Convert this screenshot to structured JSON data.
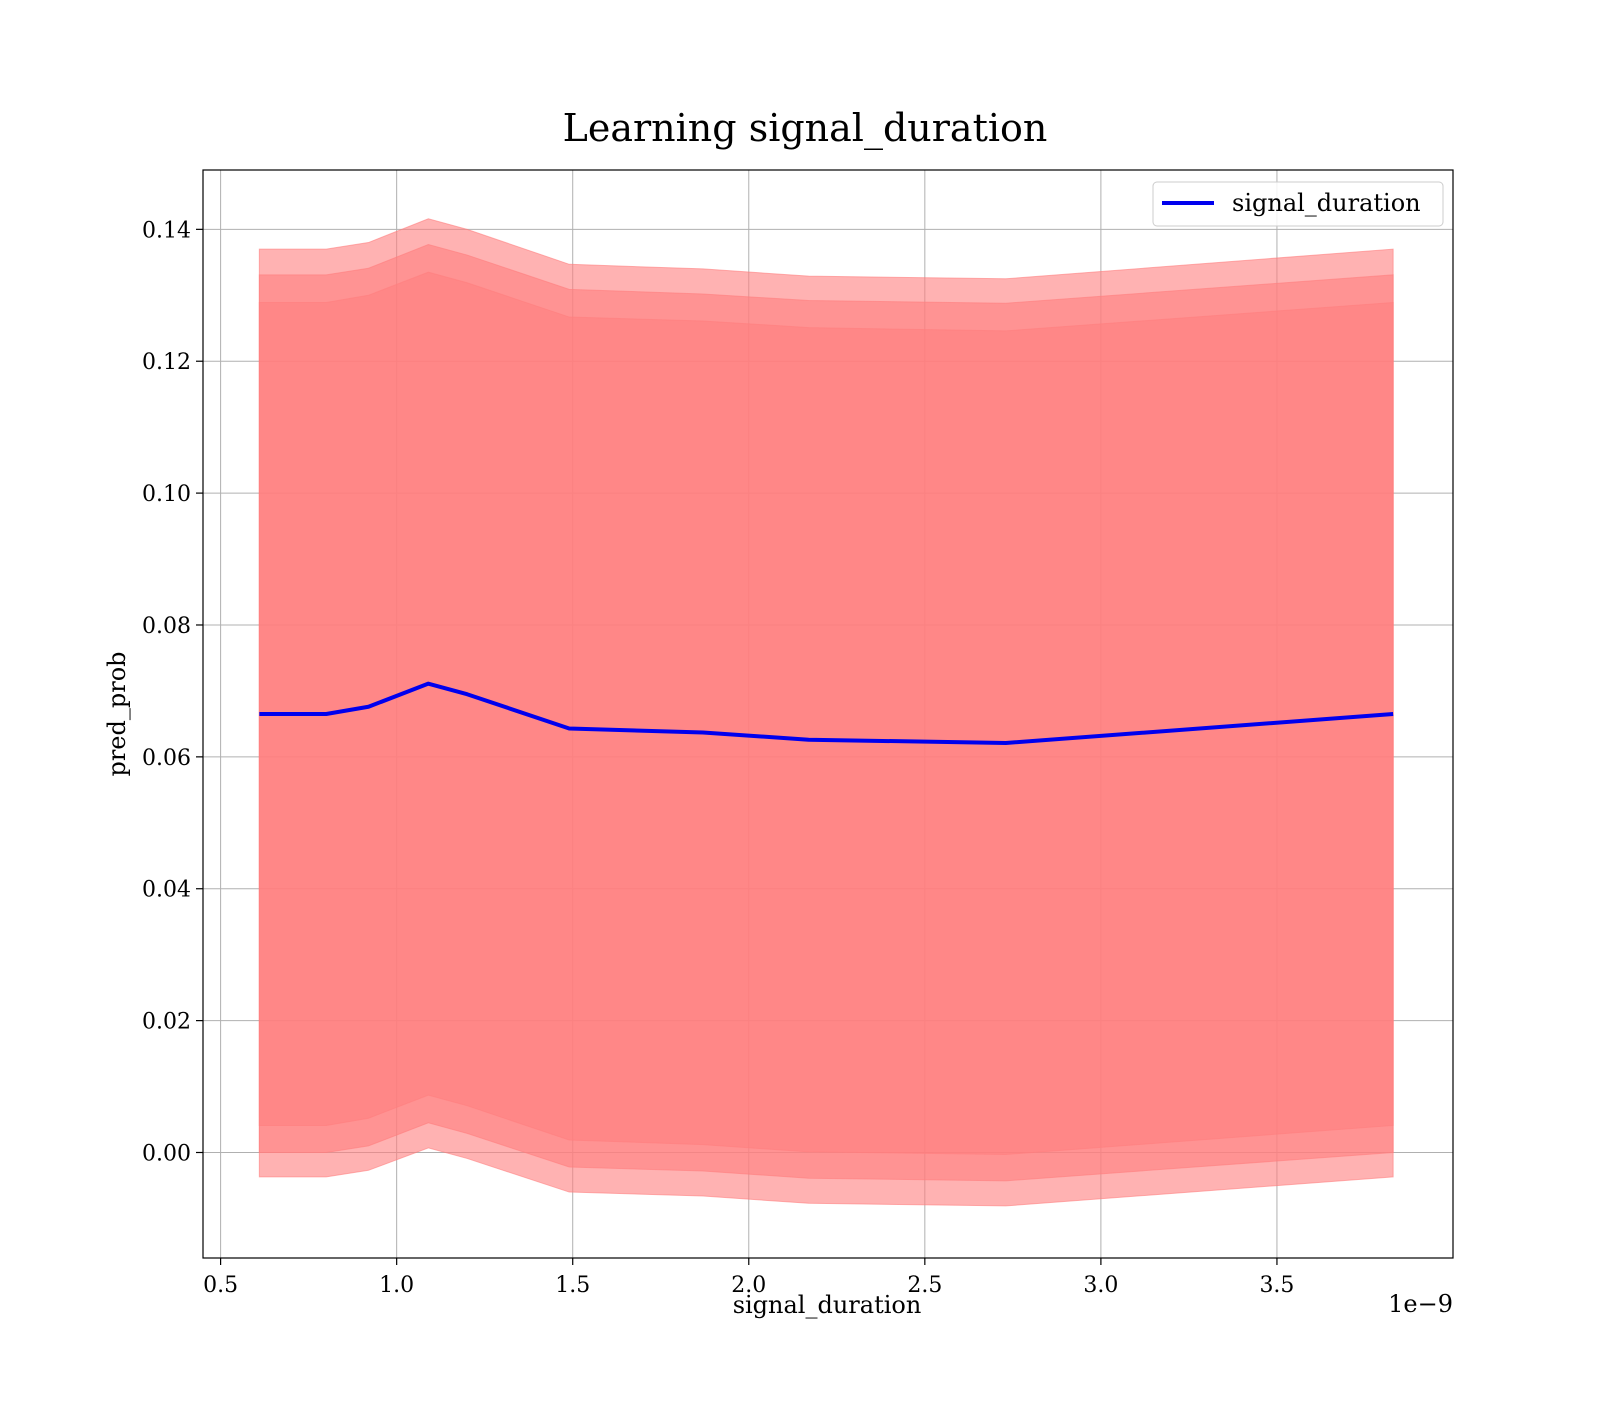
{
  "chart_data": {
    "type": "line",
    "title": "Learning signal_duration",
    "xlabel": "signal_duration",
    "ylabel": "pred_prob",
    "x_offset_label": "1e−9",
    "xlim": [
      0.45,
      4.0
    ],
    "ylim": [
      -0.016,
      0.149
    ],
    "x_ticks": [
      0.5,
      1.0,
      1.5,
      2.0,
      2.5,
      3.0,
      3.5
    ],
    "x_tick_labels": [
      "0.5",
      "1.0",
      "1.5",
      "2.0",
      "2.5",
      "3.0",
      "3.5"
    ],
    "y_ticks": [
      0.0,
      0.02,
      0.04,
      0.06,
      0.08,
      0.1,
      0.12,
      0.14
    ],
    "y_tick_labels": [
      "0.00",
      "0.02",
      "0.04",
      "0.06",
      "0.08",
      "0.10",
      "0.12",
      "0.14"
    ],
    "grid": true,
    "legend": {
      "position": "top-right",
      "entries": [
        "signal_duration"
      ]
    },
    "x": [
      0.61,
      0.8,
      0.92,
      1.09,
      1.2,
      1.49,
      1.87,
      2.17,
      2.73,
      3.83
    ],
    "series": [
      {
        "name": "signal_duration",
        "values": [
          0.0665,
          0.0665,
          0.0676,
          0.0711,
          0.0695,
          0.0643,
          0.0637,
          0.0626,
          0.0621,
          0.0665
        ]
      }
    ],
    "bands": [
      {
        "lower": [
          -0.0037,
          -0.0037,
          -0.0027,
          0.0007,
          -0.0009,
          -0.006,
          -0.0066,
          -0.0077,
          -0.0081,
          -0.0037
        ],
        "upper": [
          0.137,
          0.137,
          0.138,
          0.1416,
          0.14,
          0.1347,
          0.134,
          0.1329,
          0.1325,
          0.137
        ]
      },
      {
        "lower": [
          0.0,
          0.0,
          0.001,
          0.0045,
          0.0029,
          -0.0022,
          -0.0028,
          -0.0039,
          -0.0043,
          0.0
        ],
        "upper": [
          0.1331,
          0.1331,
          0.1341,
          0.1377,
          0.1361,
          0.1309,
          0.1302,
          0.1292,
          0.1288,
          0.1331
        ]
      },
      {
        "lower": [
          0.0041,
          0.0041,
          0.0052,
          0.0087,
          0.0071,
          0.0019,
          0.0012,
          0.0001,
          -0.0003,
          0.0041
        ],
        "upper": [
          0.1289,
          0.1289,
          0.13,
          0.1335,
          0.1319,
          0.1267,
          0.1261,
          0.1251,
          0.1246,
          0.1289
        ]
      }
    ],
    "colors": {
      "line": "#0000ee",
      "band_outer": "#ff7f7f",
      "band_middle": "#a36a43",
      "band_inner": "#7a3556",
      "grid": "#b0b0b0"
    }
  }
}
